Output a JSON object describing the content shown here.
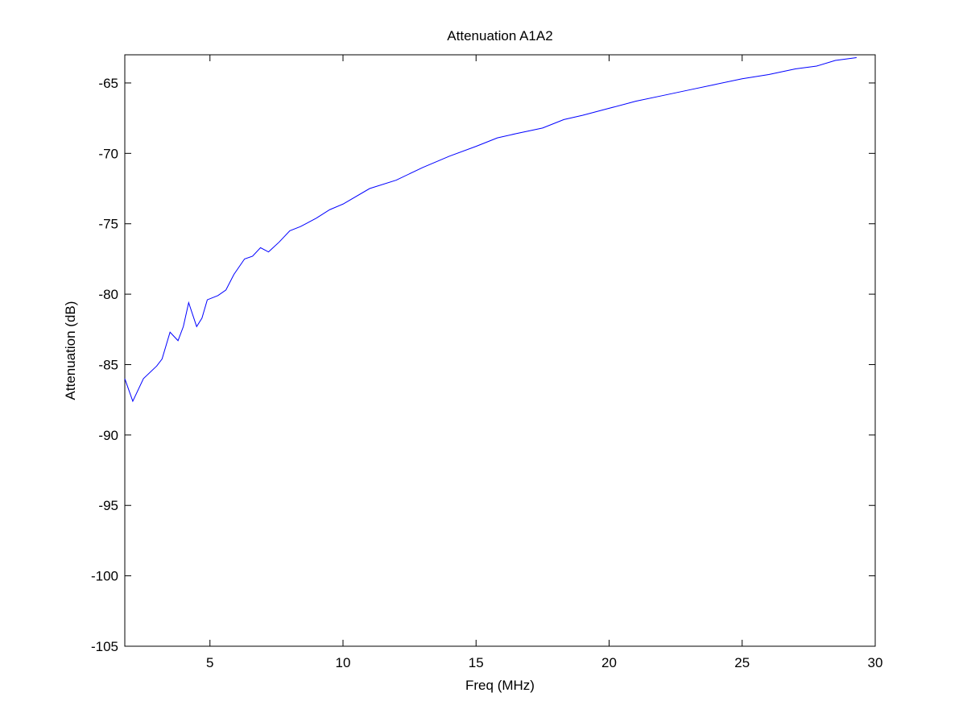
{
  "chart_data": {
    "type": "line",
    "title": "Attenuation A1A2",
    "x_label": "Freq (MHz)",
    "y_label": "Attenuation (dB)",
    "x": [
      1.8,
      2.1,
      2.5,
      3.0,
      3.2,
      3.5,
      3.8,
      4.0,
      4.2,
      4.5,
      4.7,
      4.9,
      5.3,
      5.6,
      5.9,
      6.3,
      6.6,
      6.9,
      7.2,
      7.6,
      8.0,
      8.4,
      9.0,
      9.5,
      10,
      11,
      12,
      13,
      14,
      15,
      15.8,
      16.5,
      17.5,
      18.3,
      19,
      20,
      21,
      22,
      23,
      24,
      25,
      26,
      27,
      27.8,
      28.5,
      29.3
    ],
    "series": [
      {
        "name": "A1A2",
        "color": "#0000ff",
        "values": [
          -86.0,
          -87.6,
          -86.0,
          -85.1,
          -84.6,
          -82.7,
          -83.3,
          -82.3,
          -80.6,
          -82.3,
          -81.7,
          -80.4,
          -80.1,
          -79.7,
          -78.6,
          -77.5,
          -77.3,
          -76.7,
          -77.0,
          -76.3,
          -75.5,
          -75.2,
          -74.6,
          -74.0,
          -73.6,
          -72.5,
          -71.9,
          -71.0,
          -70.2,
          -69.5,
          -68.9,
          -68.6,
          -68.2,
          -67.6,
          -67.3,
          -66.8,
          -66.3,
          -65.9,
          -65.5,
          -65.1,
          -64.7,
          -64.4,
          -64.0,
          -63.8,
          -63.4,
          -63.2
        ]
      }
    ],
    "xlim": [
      1.8,
      30
    ],
    "ylim": [
      -105,
      -63
    ],
    "xticks": [
      5,
      10,
      15,
      20,
      25,
      30
    ],
    "yticks": [
      -105,
      -100,
      -95,
      -90,
      -85,
      -80,
      -75,
      -70,
      -65
    ],
    "grid": false
  }
}
